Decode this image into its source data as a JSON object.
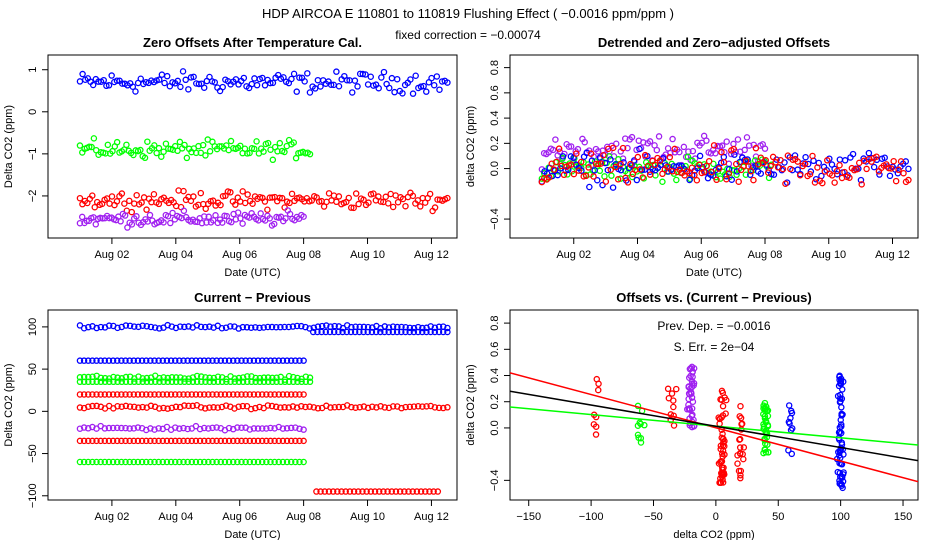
{
  "figure": {
    "title": "HDP   AIRCOA E   110801 to 110819   Flushing Effect ( −0.0016 ppm/ppm )",
    "subtitle": "fixed correction = −0.00074"
  },
  "colors": {
    "blue": "#0000ff",
    "green": "#00ff00",
    "red": "#ff0000",
    "purple": "#a020f0",
    "black": "#000000"
  },
  "chart_data": [
    {
      "id": "zero-offsets",
      "type": "scatter",
      "title": "Zero Offsets After Temperature Cal.",
      "xlabel": "Date (UTC)",
      "ylabel": "Delta CO2 (ppm)",
      "xlim": [
        0.0,
        12.8
      ],
      "ylim": [
        -3.0,
        1.35
      ],
      "xticks": [
        {
          "v": 2,
          "label": "Aug 02"
        },
        {
          "v": 4,
          "label": "Aug 04"
        },
        {
          "v": 6,
          "label": "Aug 06"
        },
        {
          "v": 8,
          "label": "Aug 08"
        },
        {
          "v": 10,
          "label": "Aug 10"
        },
        {
          "v": 12,
          "label": "Aug 12"
        }
      ],
      "yticks": [
        {
          "v": 1,
          "label": "1"
        },
        {
          "v": 0,
          "label": "0"
        },
        {
          "v": -1,
          "label": "−1"
        },
        {
          "v": -2,
          "label": "−2"
        }
      ],
      "series": [
        {
          "name": "blue",
          "color": "blue",
          "x_start": 1.0,
          "x_end": 12.5,
          "mean": 0.7,
          "spread": 0.35,
          "n": 140
        },
        {
          "name": "green",
          "color": "green",
          "x_start": 1.0,
          "x_end": 8.2,
          "mean": -0.9,
          "spread": 0.3,
          "n": 100
        },
        {
          "name": "red",
          "color": "red",
          "x_start": 1.0,
          "x_end": 12.5,
          "mean": -2.1,
          "spread": 0.3,
          "n": 150
        },
        {
          "name": "purple",
          "color": "purple",
          "x_start": 1.0,
          "x_end": 8.0,
          "mean": -2.55,
          "spread": 0.25,
          "n": 100
        }
      ]
    },
    {
      "id": "detrended-offsets",
      "type": "scatter",
      "title": "Detrended and Zero−adjusted Offsets",
      "xlabel": "Date (UTC)",
      "ylabel": "delta CO2 (ppm)",
      "xlim": [
        0.0,
        12.8
      ],
      "ylim": [
        -0.55,
        0.9
      ],
      "xticks": [
        {
          "v": 2,
          "label": "Aug 02"
        },
        {
          "v": 4,
          "label": "Aug 04"
        },
        {
          "v": 6,
          "label": "Aug 06"
        },
        {
          "v": 8,
          "label": "Aug 08"
        },
        {
          "v": 10,
          "label": "Aug 10"
        },
        {
          "v": 12,
          "label": "Aug 12"
        }
      ],
      "yticks": [
        {
          "v": 0.8,
          "label": "0.8"
        },
        {
          "v": 0.6,
          "label": "0.6"
        },
        {
          "v": 0.4,
          "label": "0.4"
        },
        {
          "v": 0.2,
          "label": "0.2"
        },
        {
          "v": 0.0,
          "label": "0.0"
        },
        {
          "v": -0.4,
          "label": "−0.4"
        }
      ],
      "series": [
        {
          "name": "purple",
          "color": "purple",
          "x_start": 1.0,
          "x_end": 8.0,
          "mean": 0.15,
          "spread": 0.18,
          "n": 100
        },
        {
          "name": "green",
          "color": "green",
          "x_start": 1.0,
          "x_end": 8.2,
          "mean": 0.0,
          "spread": 0.13,
          "n": 100
        },
        {
          "name": "blue",
          "color": "blue",
          "x_start": 1.0,
          "x_end": 12.5,
          "mean": 0.0,
          "spread": 0.18,
          "n": 140
        },
        {
          "name": "red",
          "color": "red",
          "x_start": 1.0,
          "x_end": 12.5,
          "mean": 0.0,
          "spread": 0.22,
          "n": 150
        }
      ]
    },
    {
      "id": "current-previous",
      "type": "scatter",
      "title": "Current − Previous",
      "xlabel": "Date (UTC)",
      "ylabel": "Delta CO2 (ppm)",
      "xlim": [
        0.0,
        12.8
      ],
      "ylim": [
        -105,
        120
      ],
      "xticks": [
        {
          "v": 2,
          "label": "Aug 02"
        },
        {
          "v": 4,
          "label": "Aug 04"
        },
        {
          "v": 6,
          "label": "Aug 06"
        },
        {
          "v": 8,
          "label": "Aug 08"
        },
        {
          "v": 10,
          "label": "Aug 10"
        },
        {
          "v": 12,
          "label": "Aug 12"
        }
      ],
      "yticks": [
        {
          "v": 100,
          "label": "100"
        },
        {
          "v": 50,
          "label": "50"
        },
        {
          "v": 0,
          "label": "0"
        },
        {
          "v": -50,
          "label": "−50"
        },
        {
          "v": -100,
          "label": "−100"
        }
      ],
      "series": [
        {
          "name": "blue",
          "color": "blue",
          "levels": [
            {
              "y": 100,
              "x_start": 1.0,
              "x_end": 12.5,
              "jitter": 3
            },
            {
              "y": 94,
              "x_start": 8.3,
              "x_end": 12.5,
              "jitter": 0
            }
          ]
        },
        {
          "name": "blue-const",
          "color": "blue",
          "levels": [
            {
              "y": 60,
              "x_start": 1.0,
              "x_end": 8.0,
              "jitter": 0
            }
          ]
        },
        {
          "name": "green",
          "color": "green",
          "levels": [
            {
              "y": 40,
              "x_start": 1.0,
              "x_end": 8.2,
              "jitter": 3
            },
            {
              "y": 35,
              "x_start": 1.0,
              "x_end": 8.2,
              "jitter": 0
            },
            {
              "y": -60,
              "x_start": 1.0,
              "x_end": 8.0,
              "jitter": 0
            }
          ]
        },
        {
          "name": "red",
          "color": "red",
          "levels": [
            {
              "y": 20,
              "x_start": 1.0,
              "x_end": 8.0,
              "jitter": 0
            },
            {
              "y": 5,
              "x_start": 1.0,
              "x_end": 12.5,
              "jitter": 3
            },
            {
              "y": -35,
              "x_start": 1.0,
              "x_end": 8.0,
              "jitter": 0
            },
            {
              "y": -95,
              "x_start": 8.4,
              "x_end": 12.2,
              "jitter": 0
            }
          ]
        },
        {
          "name": "purple",
          "color": "purple",
          "levels": [
            {
              "y": -20,
              "x_start": 1.0,
              "x_end": 8.0,
              "jitter": 3
            }
          ]
        }
      ]
    },
    {
      "id": "offsets-vs-diff",
      "type": "scatter",
      "title": "Offsets vs. (Current − Previous)",
      "xlabel": "delta CO2 (ppm)",
      "ylabel": "delta CO2 (ppm)",
      "xlim": [
        -165,
        162
      ],
      "ylim": [
        -0.55,
        0.9
      ],
      "xticks": [
        {
          "v": -150,
          "label": "−150"
        },
        {
          "v": -100,
          "label": "−100"
        },
        {
          "v": -50,
          "label": "−50"
        },
        {
          "v": 0,
          "label": "0"
        },
        {
          "v": 50,
          "label": "50"
        },
        {
          "v": 100,
          "label": "100"
        },
        {
          "v": 150,
          "label": "150"
        }
      ],
      "yticks": [
        {
          "v": 0.8,
          "label": "0.8"
        },
        {
          "v": 0.6,
          "label": "0.6"
        },
        {
          "v": 0.4,
          "label": "0.4"
        },
        {
          "v": 0.2,
          "label": "0.2"
        },
        {
          "v": 0.0,
          "label": "0.0"
        },
        {
          "v": -0.4,
          "label": "−0.4"
        }
      ],
      "annotations": [
        "Prev. Dep. =  −0.0016",
        "S. Err. =  2e−04"
      ],
      "columns": [
        {
          "x": -95,
          "color": "red",
          "ymin": -0.1,
          "ymax": 0.4,
          "n": 8
        },
        {
          "x": -60,
          "color": "green",
          "ymin": -0.15,
          "ymax": 0.2,
          "n": 10
        },
        {
          "x": -35,
          "color": "red",
          "ymin": 0.0,
          "ymax": 0.3,
          "n": 10
        },
        {
          "x": -20,
          "color": "purple",
          "ymin": 0.0,
          "ymax": 0.48,
          "n": 40
        },
        {
          "x": 5,
          "color": "red",
          "ymin": -0.45,
          "ymax": 0.3,
          "n": 50
        },
        {
          "x": 20,
          "color": "red",
          "ymin": -0.4,
          "ymax": 0.2,
          "n": 20
        },
        {
          "x": 40,
          "color": "green",
          "ymin": -0.2,
          "ymax": 0.2,
          "n": 40
        },
        {
          "x": 60,
          "color": "blue",
          "ymin": -0.2,
          "ymax": 0.2,
          "n": 10
        },
        {
          "x": 100,
          "color": "blue",
          "ymin": -0.5,
          "ymax": 0.4,
          "n": 60
        }
      ],
      "lines": [
        {
          "name": "red-fit",
          "color": "red",
          "x0": -165,
          "y0": 0.42,
          "x1": 162,
          "y1": -0.41
        },
        {
          "name": "green-fit",
          "color": "green",
          "x0": -165,
          "y0": 0.16,
          "x1": 162,
          "y1": -0.13
        },
        {
          "name": "black-fit",
          "color": "black",
          "x0": -165,
          "y0": 0.28,
          "x1": 162,
          "y1": -0.25
        }
      ]
    }
  ]
}
